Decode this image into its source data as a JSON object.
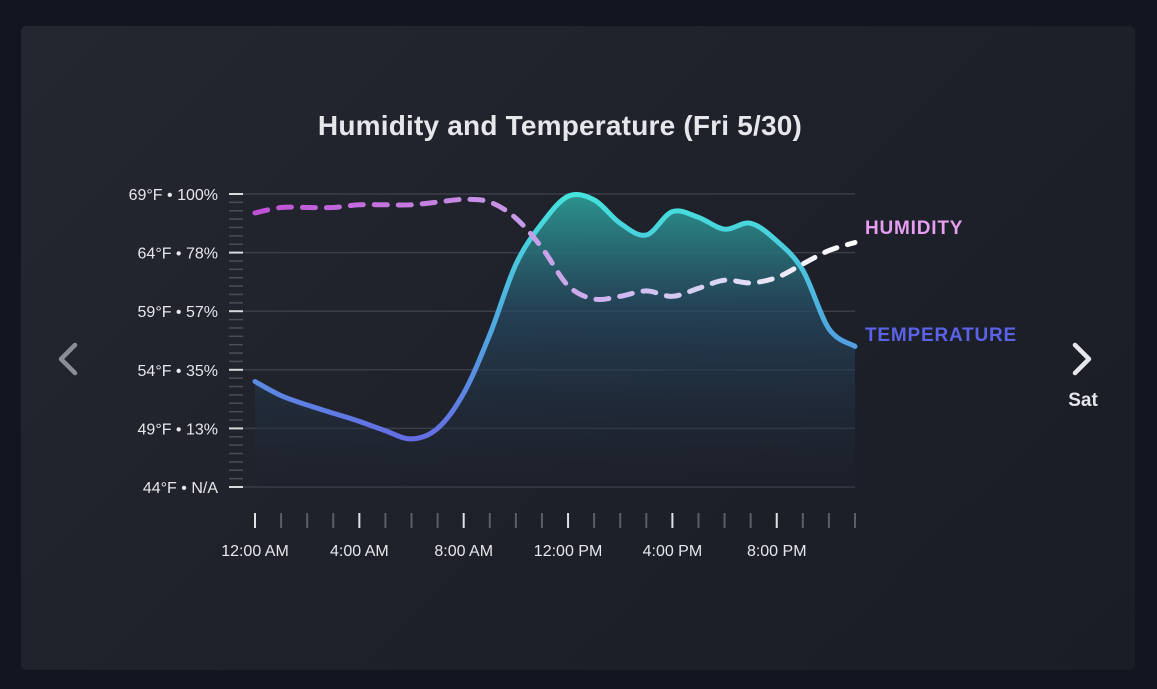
{
  "title": "Humidity and Temperature (Fri 5/30)",
  "navigation": {
    "prev_icon": "chevron-left-icon",
    "next_icon": "chevron-right-icon",
    "next_label": "Sat"
  },
  "colors": {
    "background": "#131620",
    "card": "#22252e",
    "gridline": "#3a3e49",
    "axis_text": "#e6e7ea",
    "humidity_label": "#e59ef0",
    "temperature_label": "#5a62e6",
    "humidity_line_start": "#c04fd6",
    "humidity_line_end": "#ffffff",
    "temperature_line_low": "#6a5fe6",
    "temperature_line_high": "#45e6dc"
  },
  "chart_data": {
    "type": "line",
    "title": "Humidity and Temperature (Fri 5/30)",
    "y_tick_labels": [
      "69°F • 100%",
      "64°F • 78%",
      "59°F • 57%",
      "54°F • 35%",
      "49°F • 13%",
      "44°F • N/A"
    ],
    "temperature_ylim": [
      44,
      69
    ],
    "humidity_ylim": [
      -8.8,
      100
    ],
    "x_tick_labels": [
      "12:00 AM",
      "4:00 AM",
      "8:00 AM",
      "12:00 PM",
      "4:00 PM",
      "8:00 PM"
    ],
    "x_tick_hours": [
      0,
      4,
      8,
      12,
      16,
      20
    ],
    "xlim_hours": [
      0,
      23
    ],
    "grid": true,
    "series": [
      {
        "name": "HUMIDITY",
        "unit": "%",
        "style": "dashed",
        "x": [
          0,
          1,
          2,
          3,
          4,
          5,
          6,
          7,
          8,
          9,
          10,
          11,
          12,
          13,
          14,
          15,
          16,
          17,
          18,
          19,
          20,
          21,
          22,
          23
        ],
        "values": [
          93,
          95,
          95,
          95,
          96,
          96,
          96,
          97,
          98,
          97,
          91,
          80,
          66,
          61,
          62,
          64,
          62,
          65,
          68,
          67,
          69,
          74,
          79,
          82
        ]
      },
      {
        "name": "TEMPERATURE",
        "unit": "°F",
        "style": "solid-area",
        "x": [
          0,
          1,
          2,
          3,
          4,
          5,
          6,
          7,
          8,
          9,
          10,
          11,
          12,
          13,
          14,
          15,
          16,
          17,
          18,
          19,
          20,
          21,
          22,
          23
        ],
        "values": [
          53,
          51.8,
          51,
          50.3,
          49.6,
          48.8,
          48.1,
          49,
          52,
          57,
          63,
          66.5,
          68.8,
          68.5,
          66.5,
          65.5,
          67.5,
          67,
          66,
          66.5,
          65,
          62.5,
          57.5,
          56
        ]
      }
    ]
  }
}
